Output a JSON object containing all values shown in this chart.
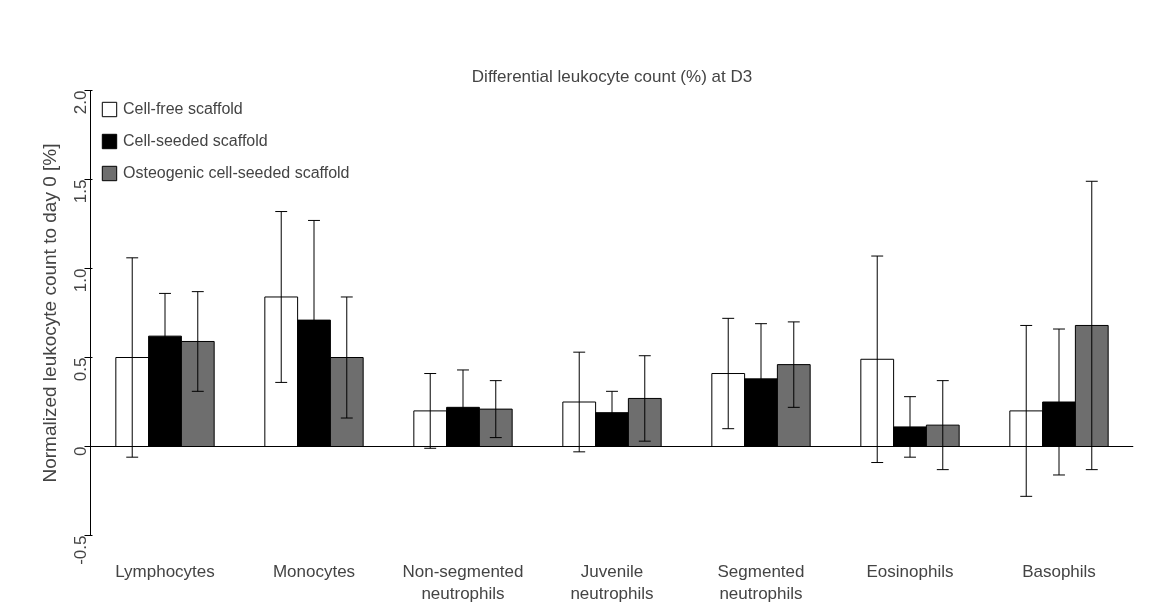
{
  "chart_data": {
    "type": "bar",
    "title": "Differential leukocyte count (%) at D3",
    "ylabel": "Normalized leukocyte count to day 0 [%]",
    "categories": [
      "Lymphocytes",
      "Monocytes",
      "Non-segmented\nneutrophils",
      "Juvenile\nneutrophils",
      "Segmented\nneutrophils",
      "Eosinophils",
      "Basophils"
    ],
    "series": [
      {
        "name": "Cell-free scaffold",
        "color": "#ffffff",
        "values": [
          0.5,
          0.84,
          0.2,
          0.25,
          0.41,
          0.49,
          0.2
        ],
        "errors": [
          0.56,
          0.48,
          0.21,
          0.28,
          0.31,
          0.58,
          0.48
        ]
      },
      {
        "name": "Cell-seeded scaffold",
        "color": "#000000",
        "values": [
          0.62,
          0.71,
          0.22,
          0.19,
          0.38,
          0.11,
          0.25
        ],
        "errors": [
          0.24,
          0.56,
          0.21,
          0.12,
          0.31,
          0.17,
          0.41
        ]
      },
      {
        "name": "Osteogenic cell-seeded scaffold",
        "color": "#6e6e6e",
        "values": [
          0.59,
          0.5,
          0.21,
          0.27,
          0.46,
          0.12,
          0.68
        ],
        "errors": [
          0.28,
          0.34,
          0.16,
          0.24,
          0.24,
          0.25,
          0.81
        ]
      }
    ],
    "ylim": [
      -0.5,
      2.0
    ],
    "yticks": [
      -0.5,
      0,
      0.5,
      {
        "value": 1,
        "label": "1.0"
      },
      1.5,
      {
        "value": 2,
        "label": "2.0"
      }
    ],
    "legend": "top left"
  }
}
